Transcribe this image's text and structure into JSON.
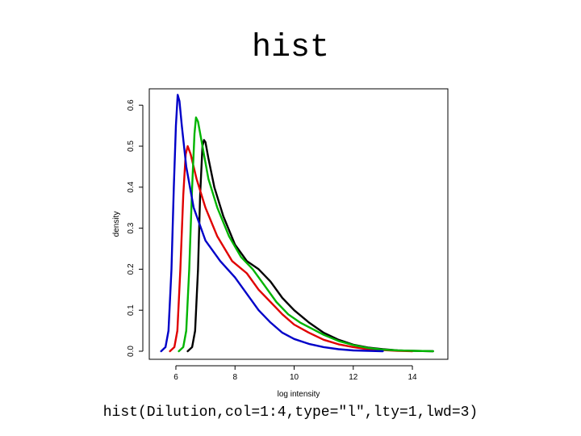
{
  "slide": {
    "title": "hist",
    "caption": "hist(Dilution,col=1:4,type=\"l\",lty=1,lwd=3)"
  },
  "chart_data": {
    "type": "line",
    "title": "",
    "xlabel": "log intensity",
    "ylabel": "density",
    "xlim": [
      5.1,
      15.2
    ],
    "ylim": [
      0,
      0.63
    ],
    "x_ticks": [
      6,
      8,
      10,
      12,
      14
    ],
    "y_ticks": [
      0.0,
      0.1,
      0.2,
      0.3,
      0.4,
      0.5,
      0.6
    ],
    "x_tick_labels": [
      "6",
      "8",
      "10",
      "12",
      "14"
    ],
    "y_tick_labels": [
      "0.0",
      "0.1",
      "0.2",
      "0.3",
      "0.4",
      "0.5",
      "0.6"
    ],
    "grid": false,
    "legend": "none",
    "series": [
      {
        "color": "#000000",
        "points": [
          [
            6.4,
            0.0
          ],
          [
            6.55,
            0.01
          ],
          [
            6.65,
            0.05
          ],
          [
            6.75,
            0.2
          ],
          [
            6.82,
            0.38
          ],
          [
            6.9,
            0.5
          ],
          [
            6.95,
            0.515
          ],
          [
            7.0,
            0.51
          ],
          [
            7.1,
            0.47
          ],
          [
            7.3,
            0.4
          ],
          [
            7.6,
            0.33
          ],
          [
            8.0,
            0.26
          ],
          [
            8.4,
            0.22
          ],
          [
            8.8,
            0.2
          ],
          [
            9.2,
            0.17
          ],
          [
            9.6,
            0.13
          ],
          [
            10.0,
            0.1
          ],
          [
            10.5,
            0.07
          ],
          [
            11.0,
            0.045
          ],
          [
            11.5,
            0.028
          ],
          [
            12.0,
            0.016
          ],
          [
            12.5,
            0.009
          ],
          [
            13.0,
            0.005
          ],
          [
            13.5,
            0.002
          ],
          [
            14.0,
            0.001
          ],
          [
            14.7,
            0.0
          ]
        ]
      },
      {
        "color": "#e00000",
        "points": [
          [
            5.8,
            0.0
          ],
          [
            5.95,
            0.01
          ],
          [
            6.05,
            0.05
          ],
          [
            6.15,
            0.2
          ],
          [
            6.25,
            0.38
          ],
          [
            6.33,
            0.48
          ],
          [
            6.4,
            0.5
          ],
          [
            6.5,
            0.48
          ],
          [
            6.7,
            0.42
          ],
          [
            7.0,
            0.35
          ],
          [
            7.4,
            0.28
          ],
          [
            7.9,
            0.22
          ],
          [
            8.4,
            0.19
          ],
          [
            8.8,
            0.15
          ],
          [
            9.2,
            0.12
          ],
          [
            9.6,
            0.09
          ],
          [
            10.0,
            0.065
          ],
          [
            10.5,
            0.045
          ],
          [
            11.0,
            0.028
          ],
          [
            11.5,
            0.017
          ],
          [
            12.0,
            0.01
          ],
          [
            12.5,
            0.005
          ],
          [
            13.0,
            0.003
          ],
          [
            13.5,
            0.001
          ],
          [
            14.0,
            0.0
          ]
        ]
      },
      {
        "color": "#00b400",
        "points": [
          [
            6.1,
            0.0
          ],
          [
            6.25,
            0.01
          ],
          [
            6.35,
            0.05
          ],
          [
            6.45,
            0.2
          ],
          [
            6.55,
            0.4
          ],
          [
            6.63,
            0.53
          ],
          [
            6.68,
            0.57
          ],
          [
            6.75,
            0.56
          ],
          [
            6.9,
            0.5
          ],
          [
            7.1,
            0.42
          ],
          [
            7.4,
            0.35
          ],
          [
            7.8,
            0.28
          ],
          [
            8.2,
            0.23
          ],
          [
            8.6,
            0.2
          ],
          [
            9.0,
            0.16
          ],
          [
            9.4,
            0.12
          ],
          [
            9.8,
            0.09
          ],
          [
            10.2,
            0.07
          ],
          [
            10.6,
            0.055
          ],
          [
            11.0,
            0.04
          ],
          [
            11.5,
            0.025
          ],
          [
            12.0,
            0.015
          ],
          [
            12.5,
            0.008
          ],
          [
            13.0,
            0.004
          ],
          [
            13.5,
            0.002
          ],
          [
            14.0,
            0.001
          ],
          [
            14.7,
            0.0
          ]
        ]
      },
      {
        "color": "#0000c8",
        "points": [
          [
            5.5,
            0.0
          ],
          [
            5.65,
            0.01
          ],
          [
            5.75,
            0.05
          ],
          [
            5.85,
            0.2
          ],
          [
            5.93,
            0.4
          ],
          [
            6.0,
            0.55
          ],
          [
            6.06,
            0.625
          ],
          [
            6.12,
            0.61
          ],
          [
            6.2,
            0.55
          ],
          [
            6.35,
            0.45
          ],
          [
            6.6,
            0.35
          ],
          [
            7.0,
            0.27
          ],
          [
            7.5,
            0.22
          ],
          [
            8.0,
            0.18
          ],
          [
            8.4,
            0.14
          ],
          [
            8.8,
            0.1
          ],
          [
            9.2,
            0.07
          ],
          [
            9.6,
            0.045
          ],
          [
            10.0,
            0.03
          ],
          [
            10.5,
            0.018
          ],
          [
            11.0,
            0.01
          ],
          [
            11.5,
            0.005
          ],
          [
            12.0,
            0.002
          ],
          [
            12.5,
            0.001
          ],
          [
            13.0,
            0.0
          ]
        ]
      }
    ]
  }
}
